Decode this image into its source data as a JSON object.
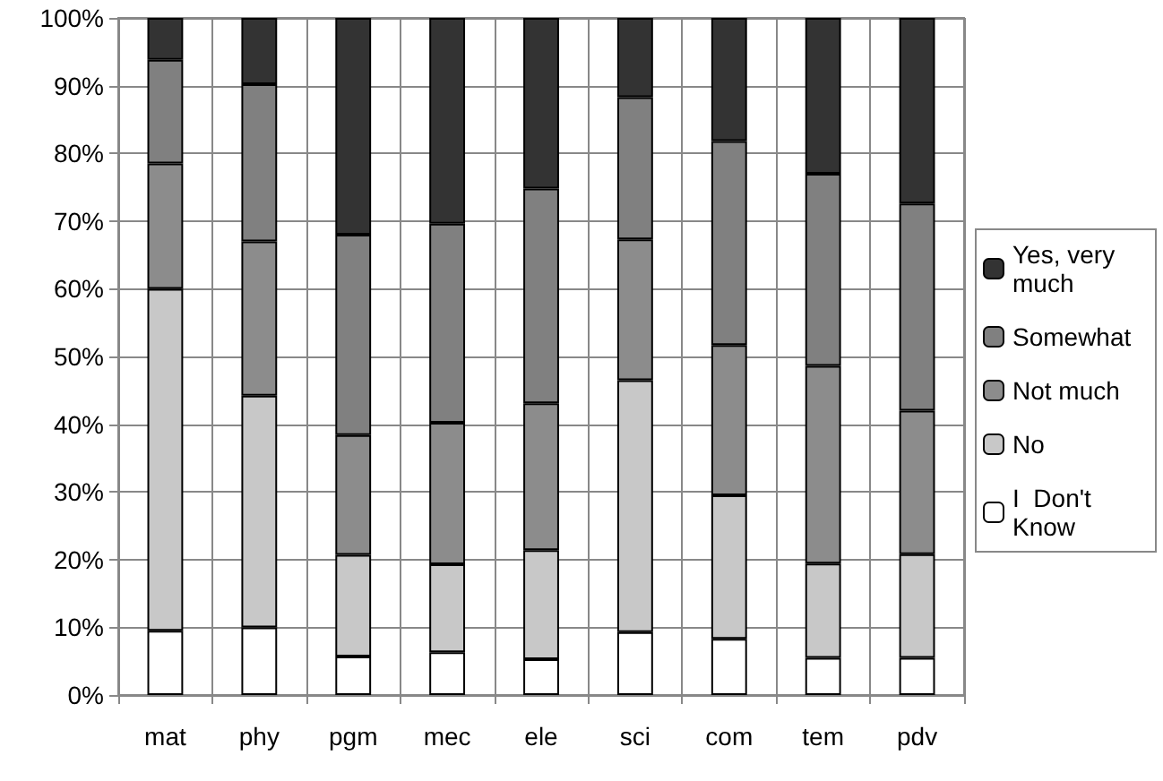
{
  "chart_data": {
    "type": "bar",
    "stacked": true,
    "categories": [
      "mat",
      "phy",
      "pgm",
      "mec",
      "ele",
      "sci",
      "com",
      "tem",
      "pdv"
    ],
    "series": [
      {
        "name": "I  Don't Know",
        "color": "#ffffff",
        "values": [
          9.5,
          10,
          5.7,
          6.3,
          5.3,
          9.3,
          8.3,
          5.5,
          5.5
        ]
      },
      {
        "name": "No",
        "color": "#c8c8c8",
        "values": [
          50.5,
          34.2,
          15,
          13,
          16.1,
          37.2,
          21.2,
          13.9,
          15.3
        ]
      },
      {
        "name": "Not much",
        "color": "#8c8c8c",
        "values": [
          18.5,
          22.8,
          17.7,
          20.9,
          21.7,
          20.8,
          22.2,
          29.2,
          21.2
        ]
      },
      {
        "name": "Somewhat",
        "color": "#808080",
        "values": [
          15.3,
          23.2,
          29.6,
          29.4,
          31.7,
          21,
          30.1,
          28.4,
          30.6
        ]
      },
      {
        "name": "Yes, very much",
        "color": "#333333",
        "values": [
          6.2,
          9.8,
          32,
          30.4,
          25.2,
          11.7,
          18.2,
          23,
          27.4
        ]
      }
    ],
    "ylim": [
      0,
      100
    ],
    "yticks": [
      {
        "value": 0,
        "label": "0%"
      },
      {
        "value": 10,
        "label": "10%"
      },
      {
        "value": 20,
        "label": "20%"
      },
      {
        "value": 30,
        "label": "30%"
      },
      {
        "value": 40,
        "label": "40%"
      },
      {
        "value": 50,
        "label": "50%"
      },
      {
        "value": 60,
        "label": "60%"
      },
      {
        "value": 70,
        "label": "70%"
      },
      {
        "value": 80,
        "label": "80%"
      },
      {
        "value": 90,
        "label": "90%"
      },
      {
        "value": 100,
        "label": "100%"
      }
    ],
    "grid": true,
    "legend": "right"
  }
}
